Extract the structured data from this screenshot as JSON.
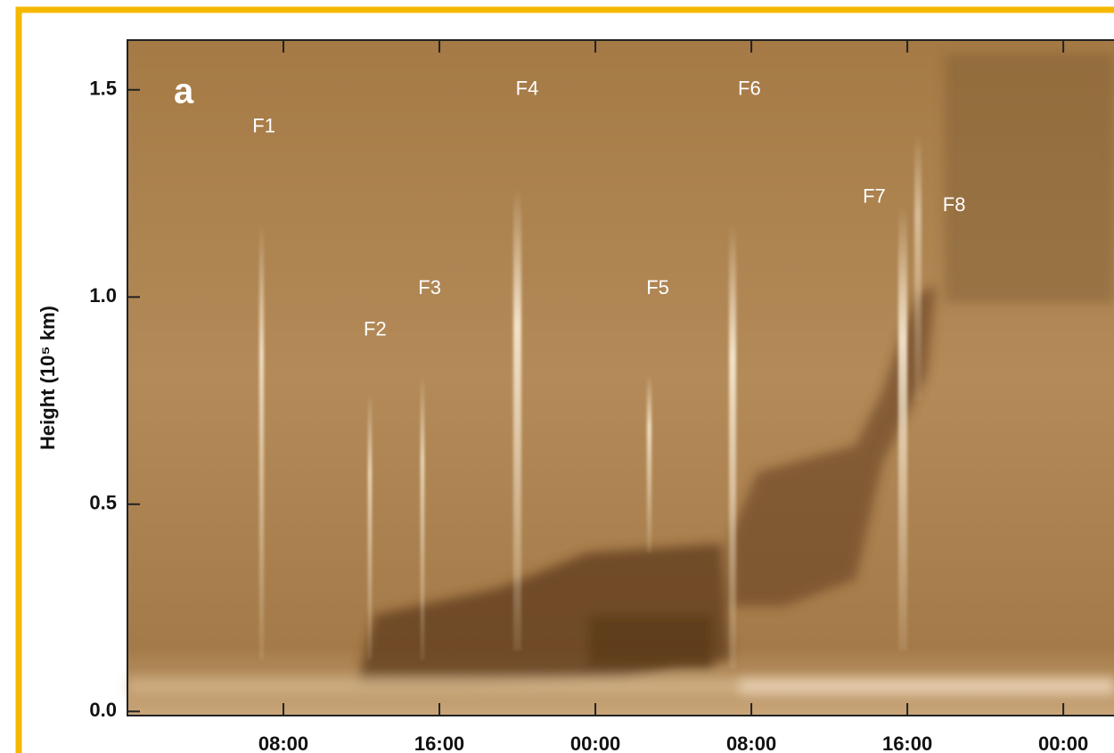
{
  "chart_data": {
    "type": "timeslice",
    "panel_label": "a",
    "ylabel": "Height (10⁵ km)",
    "xlim": [
      0,
      50.6
    ],
    "ylim": [
      -0.01,
      1.62
    ],
    "xticks": [
      {
        "value": 8,
        "label": "08:00"
      },
      {
        "value": 16,
        "label": "16:00"
      },
      {
        "value": 24,
        "label": "00:00"
      },
      {
        "value": 32,
        "label": "08:00"
      },
      {
        "value": 40,
        "label": "16:00"
      },
      {
        "value": 48,
        "label": "00:00"
      }
    ],
    "yticks": [
      {
        "value": 0,
        "label": "0.0"
      },
      0.5,
      {
        "value": 1,
        "label": "1.0"
      },
      1.5
    ],
    "annotations": [
      {
        "text": "F1",
        "x": 7.0,
        "y": 1.41
      },
      {
        "text": "F2",
        "x": 12.7,
        "y": 0.92
      },
      {
        "text": "F3",
        "x": 15.5,
        "y": 1.02
      },
      {
        "text": "F4",
        "x": 20.5,
        "y": 1.5
      },
      {
        "text": "F5",
        "x": 27.2,
        "y": 1.02
      },
      {
        "text": "F6",
        "x": 31.9,
        "y": 1.5
      },
      {
        "text": "F7",
        "x": 38.3,
        "y": 1.24
      },
      {
        "text": "F8",
        "x": 42.4,
        "y": 1.22
      }
    ]
  }
}
